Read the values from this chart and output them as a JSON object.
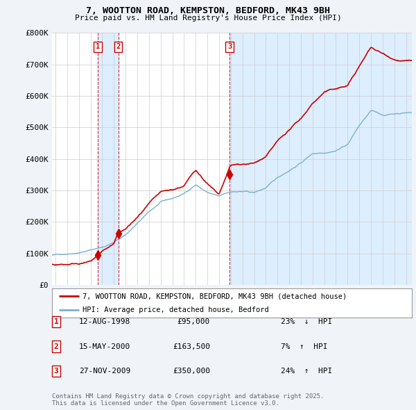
{
  "title": "7, WOOTTON ROAD, KEMPSTON, BEDFORD, MK43 9BH",
  "subtitle": "Price paid vs. HM Land Registry's House Price Index (HPI)",
  "ylim": [
    0,
    800000
  ],
  "yticks": [
    0,
    100000,
    200000,
    300000,
    400000,
    500000,
    600000,
    700000,
    800000
  ],
  "ytick_labels": [
    "£0",
    "£100K",
    "£200K",
    "£300K",
    "£400K",
    "£500K",
    "£600K",
    "£700K",
    "£800K"
  ],
  "sale_color": "#cc0000",
  "hpi_color": "#7ab0d4",
  "shade_color": "#ddeeff",
  "sale_label": "7, WOOTTON ROAD, KEMPSTON, BEDFORD, MK43 9BH (detached house)",
  "hpi_label": "HPI: Average price, detached house, Bedford",
  "transactions": [
    {
      "num": 1,
      "date": "12-AUG-1998",
      "price": 95000,
      "pct": "23%",
      "dir": "↓",
      "x": 1998.62
    },
    {
      "num": 2,
      "date": "15-MAY-2000",
      "price": 163500,
      "pct": "7%",
      "dir": "↑",
      "x": 2000.37
    },
    {
      "num": 3,
      "date": "27-NOV-2009",
      "price": 350000,
      "pct": "24%",
      "dir": "↑",
      "x": 2009.9
    }
  ],
  "footer": "Contains HM Land Registry data © Crown copyright and database right 2025.\nThis data is licensed under the Open Government Licence v3.0.",
  "bg_color": "#f0f4f8",
  "plot_bg_color": "#ffffff",
  "grid_color": "#cccccc",
  "vline_color": "#cc0000",
  "box_color": "#cc0000",
  "hpi_anchors": {
    "1995": 95000,
    "1996": 100000,
    "1997": 107000,
    "1998": 115000,
    "1999": 125000,
    "2000": 140000,
    "2001": 165000,
    "2002": 200000,
    "2003": 235000,
    "2004": 265000,
    "2005": 275000,
    "2006": 290000,
    "2007": 320000,
    "2008": 295000,
    "2009": 280000,
    "2010": 295000,
    "2011": 295000,
    "2012": 290000,
    "2013": 305000,
    "2014": 335000,
    "2015": 360000,
    "2016": 385000,
    "2017": 415000,
    "2018": 420000,
    "2019": 430000,
    "2020": 450000,
    "2021": 510000,
    "2022": 555000,
    "2023": 540000,
    "2024": 545000,
    "2025": 550000
  },
  "sale_anchors": {
    "1995": 65000,
    "1996": 67000,
    "1997": 72000,
    "1998": 76000,
    "1998.62": 95000,
    "1999": 108000,
    "2000": 130000,
    "2000.37": 163500,
    "2001": 175000,
    "2002": 210000,
    "2003": 250000,
    "2004": 280000,
    "2005": 285000,
    "2006": 298000,
    "2007": 348000,
    "2008": 305000,
    "2009": 265000,
    "2009.90": 350000,
    "2010": 355000,
    "2011": 360000,
    "2012": 362000,
    "2013": 380000,
    "2014": 425000,
    "2015": 460000,
    "2016": 495000,
    "2017": 545000,
    "2018": 580000,
    "2019": 590000,
    "2020": 600000,
    "2021": 660000,
    "2022": 720000,
    "2023": 700000,
    "2024": 685000,
    "2025": 680000
  },
  "xmin": 1994.7,
  "xmax": 2025.5,
  "xtick_start": 1995,
  "xtick_end": 2025
}
